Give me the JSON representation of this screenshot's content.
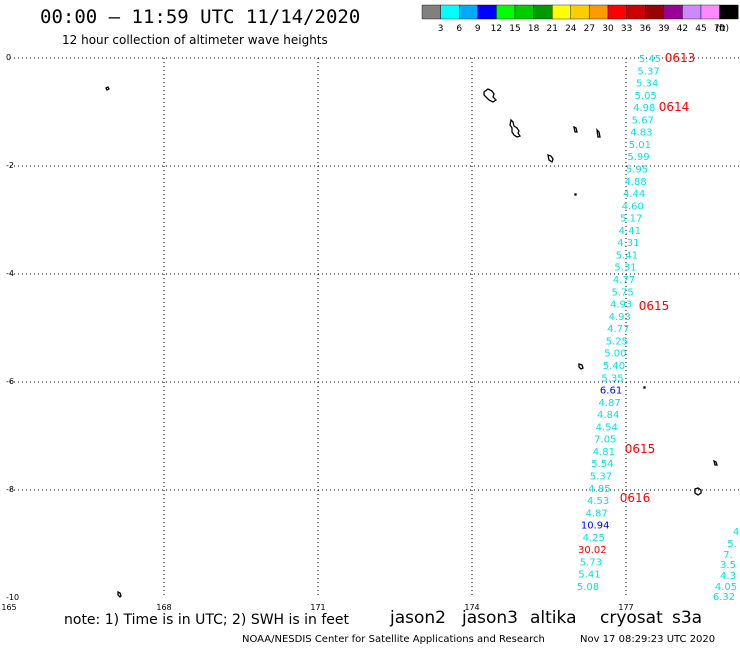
{
  "header": {
    "title": "00:00 – 11:59 UTC 11/14/2020",
    "subtitle": "12 hour collection of altimeter wave heights"
  },
  "colorbar": {
    "labels": [
      "3",
      "6",
      "9",
      "12",
      "15",
      "18",
      "21",
      "24",
      "27",
      "30",
      "33",
      "36",
      "39",
      "42",
      "45",
      "70"
    ],
    "unit": "(ft)",
    "colors": [
      "#808080",
      "#00ffff",
      "#00aaff",
      "#0000ff",
      "#00ff00",
      "#00cc00",
      "#009900",
      "#ffff00",
      "#ffcc00",
      "#ff9900",
      "#ff0000",
      "#cc0000",
      "#990000",
      "#990099",
      "#cc88ff",
      "#ff88ff",
      "#000000"
    ]
  },
  "axes": {
    "lat_labels": [
      "0",
      "-2",
      "-4",
      "-6",
      "-8",
      "-10"
    ],
    "lon_labels": [
      "165",
      "168",
      "171",
      "174",
      "177"
    ]
  },
  "track": {
    "swh_values": [
      "5.45",
      "5.37",
      "5.34",
      "5.05",
      "4.98",
      "5.67",
      "4.83",
      "5.01",
      "5.99",
      "5.95",
      "4.88",
      "4.44",
      "4.60",
      "5.17",
      "4.41",
      "4.31",
      "5.41",
      "5.31",
      "4.77",
      "5.75",
      "4.93",
      "4.93",
      "4.77",
      "5.25",
      "5.00",
      "5.40",
      "5.35",
      "6.61",
      "4.87",
      "4.84",
      "4.54",
      "7.05",
      "4.81",
      "5.54",
      "5.37",
      "4.85",
      "4.53",
      "4.87",
      "10.94",
      "4.25",
      "30.02",
      "5.73",
      "5.41",
      "5.08"
    ],
    "swh_colors": [
      "cyan",
      "cyan",
      "cyan",
      "cyan",
      "cyan",
      "cyan",
      "cyan",
      "cyan",
      "cyan",
      "cyan",
      "cyan",
      "cyan",
      "cyan",
      "cyan",
      "cyan",
      "cyan",
      "cyan",
      "cyan",
      "cyan",
      "cyan",
      "cyan",
      "cyan",
      "cyan",
      "cyan",
      "cyan",
      "cyan",
      "cyan",
      "blue",
      "cyan",
      "cyan",
      "cyan",
      "cyan",
      "cyan",
      "cyan",
      "cyan",
      "cyan",
      "cyan",
      "cyan",
      "blue",
      "cyan",
      "red",
      "cyan",
      "cyan",
      "cyan"
    ],
    "time_labels": [
      "0613",
      "0614",
      "0615",
      "0615",
      "0616"
    ],
    "partial_values": [
      "4",
      "5.",
      "7.",
      "3.5",
      "4.3",
      "4.05",
      "6.32"
    ]
  },
  "palette": {
    "cyan": "#00e5e5",
    "blue": "#0000ff",
    "red": "#ff0000",
    "grid": "#000000",
    "land": "#000000"
  },
  "footer": {
    "note": "note: 1) Time is in UTC; 2) SWH is in feet",
    "satellites": [
      {
        "name": "jason2",
        "color": "#0000ff"
      },
      {
        "name": "jason3",
        "color": "#00aa00"
      },
      {
        "name": "altika",
        "color": "#ff9900"
      },
      {
        "name": "cryosat",
        "color": "#ff0000"
      },
      {
        "name": "s3a",
        "color": "#cc0000"
      }
    ],
    "credit": "NOAA/NESDIS Center for Satellite Applications and Research",
    "stamp": "Nov 17 08:29:23 UTC 2020"
  }
}
